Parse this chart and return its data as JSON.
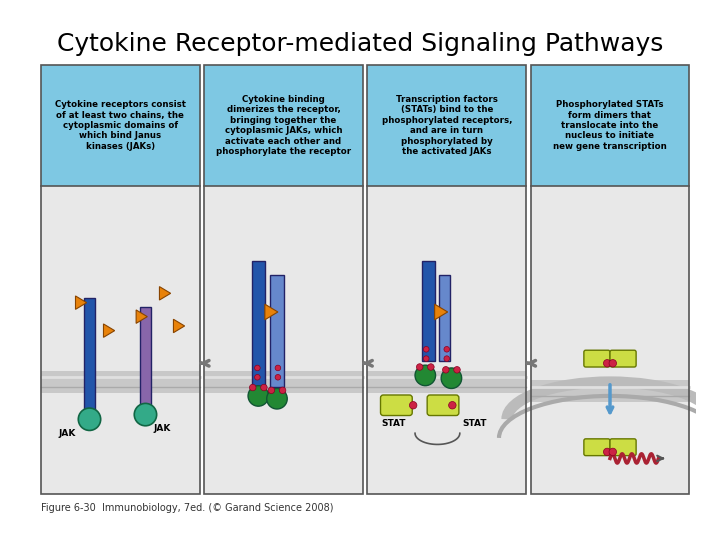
{
  "title": "Cytokine Receptor-mediated Signaling Pathways",
  "title_fontsize": 18,
  "caption": "Figure 6-30  Immunobiology, 7ed. (© Garand Science 2008)",
  "caption_fontsize": 7,
  "bg_color": "#ffffff",
  "panel_bg": "#ffffff",
  "header_bg": "#7ec8e3",
  "border_color": "#555555",
  "cell_bg": "#d8d8d8",
  "headers": [
    "Cytokine receptors consist\nof at least two chains, the\ncytoplasmic domains of\nwhich bind Janus\nkinases (JAKs)",
    "Cytokine binding\ndimerizes the receptor,\nbringing together the\ncytoplasmic JAKs, which\nactivate each other and\nphosphorylate the receptor",
    "Transcription factors\n(STATs) bind to the\nphosphorylated receptors,\nand are in turn\nphosphorylated by\nthe activated JAKs",
    "Phosphorylated STATs\nform dimers that\ntranslocate into the\nnucleus to initiate\nnew gene transcription"
  ],
  "colors": {
    "orange": "#e8820a",
    "blue_dark": "#2255aa",
    "blue_med": "#6688cc",
    "purple": "#8866aa",
    "green_dark": "#228833",
    "green_light": "#aacc22",
    "teal": "#33aa88",
    "yellow_green": "#ccdd44",
    "red_dot": "#cc2244",
    "arrow_blue": "#5599cc",
    "membrane": "#bbbbbb",
    "pink_red": "#cc3355",
    "dark_red_wave": "#aa2233"
  }
}
